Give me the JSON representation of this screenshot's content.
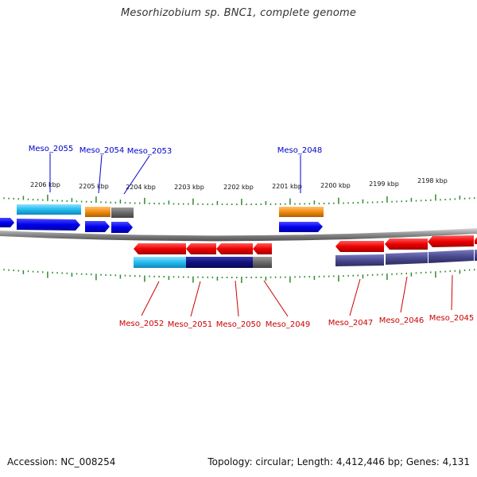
{
  "title": "Mesorhizobium sp. BNC1, complete genome",
  "footer": {
    "accession": "Accession: NC_008254",
    "stats": "Topology: circular; Length: 4,412,446 bp; Genes: 4,131"
  },
  "scale_labels": [
    "2206 kbp",
    "2205 kbp",
    "2204 kbp",
    "2203 kbp",
    "2202 kbp",
    "2201 kbp",
    "2200 kbp",
    "2199 kbp",
    "2198 kbp"
  ],
  "colors": {
    "plus_label": "#0000cc",
    "minus_label": "#cc0000",
    "tick": "#2e8b2e",
    "backbone": "#808080",
    "cds_plus": "#0000ee",
    "cds_minus": "#ee0000"
  },
  "genes_forward": [
    {
      "name": "Meso_2055"
    },
    {
      "name": "Meso_2054"
    },
    {
      "name": "Meso_2053"
    },
    {
      "name": "Meso_2048"
    }
  ],
  "genes_reverse": [
    {
      "name": "Meso_2052"
    },
    {
      "name": "Meso_2051"
    },
    {
      "name": "Meso_2050"
    },
    {
      "name": "Meso_2049"
    },
    {
      "name": "Meso_2047"
    },
    {
      "name": "Meso_2046"
    },
    {
      "name": "Meso_2045"
    }
  ]
}
